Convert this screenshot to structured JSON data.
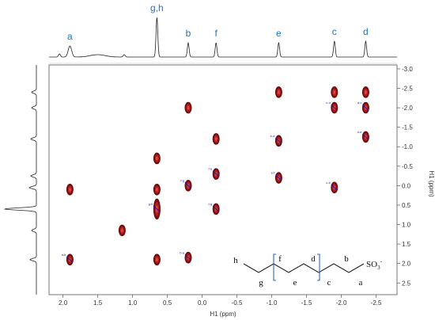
{
  "chart_data": {
    "type": "scatter",
    "subtype": "2D NMR COSY contour plot",
    "xlabel": "H1 (ppm)",
    "ylabel": "H1 (ppm)",
    "xlim": [
      2.2,
      -2.8
    ],
    "ylim": [
      -3.1,
      2.8
    ],
    "x_ticks": [
      "2.0",
      "1.5",
      "1.0",
      "0.5",
      "0.0",
      "-0.5",
      "-1.0",
      "-1.5",
      "-2.0",
      "-2.5"
    ],
    "x_tick_values": [
      2.0,
      1.5,
      1.0,
      0.5,
      0.0,
      -0.5,
      -1.0,
      -1.5,
      -2.0,
      -2.5
    ],
    "y_ticks": [
      "-3.0",
      "-2.5",
      "-2.0",
      "-1.5",
      "-1.0",
      "-0.5",
      "0.0",
      "0.5",
      "1.0",
      "1.5",
      "2.0",
      "2.5"
    ],
    "y_tick_values": [
      -3.0,
      -2.5,
      -2.0,
      -1.5,
      -1.0,
      -0.5,
      0.0,
      0.5,
      1.0,
      1.5,
      2.0,
      2.5
    ],
    "grid": false,
    "top_spectrum_peaks": [
      {
        "label": "a",
        "x": 1.9
      },
      {
        "label": "g,h",
        "x": 0.65
      },
      {
        "label": "b",
        "x": 0.2
      },
      {
        "label": "f",
        "x": -0.2
      },
      {
        "label": "e",
        "x": -1.1
      },
      {
        "label": "c",
        "x": -1.9
      },
      {
        "label": "d",
        "x": -2.35
      }
    ],
    "cross_peaks": [
      {
        "x": 1.9,
        "y": 0.1
      },
      {
        "x": 1.9,
        "y": 1.9,
        "tag": "a-b"
      },
      {
        "x": 1.15,
        "y": 1.15
      },
      {
        "x": 0.65,
        "y": -0.7
      },
      {
        "x": 0.65,
        "y": 0.1
      },
      {
        "x": 0.65,
        "y": 0.6,
        "tag": "g-h"
      },
      {
        "x": 0.65,
        "y": 1.9
      },
      {
        "x": 0.2,
        "y": -2.0
      },
      {
        "x": 0.2,
        "y": 0.0,
        "tag": "f-g"
      },
      {
        "x": 0.2,
        "y": 1.85,
        "tag": "b-a"
      },
      {
        "x": -0.2,
        "y": -1.2
      },
      {
        "x": -0.2,
        "y": -0.3,
        "tag": "f-e"
      },
      {
        "x": -0.2,
        "y": 0.6,
        "tag": "f-g"
      },
      {
        "x": -1.1,
        "y": -2.4
      },
      {
        "x": -1.1,
        "y": -1.15,
        "tag": "e-d"
      },
      {
        "x": -1.1,
        "y": -0.2,
        "tag": "e-f"
      },
      {
        "x": -1.9,
        "y": -2.4
      },
      {
        "x": -1.9,
        "y": -2.0,
        "tag": "c-d"
      },
      {
        "x": -1.9,
        "y": 0.05,
        "tag": "c-b"
      },
      {
        "x": -2.35,
        "y": -2.4
      },
      {
        "x": -2.35,
        "y": -2.0,
        "tag": "d-c"
      },
      {
        "x": -2.35,
        "y": -1.25,
        "tag": "d-e"
      }
    ],
    "structure_labels": {
      "top": [
        "h",
        "f",
        "d",
        "b"
      ],
      "bottom": [
        "g",
        "e",
        "c",
        "a"
      ],
      "end_group": "SO",
      "end_sub": "3",
      "end_sup": "-"
    }
  }
}
